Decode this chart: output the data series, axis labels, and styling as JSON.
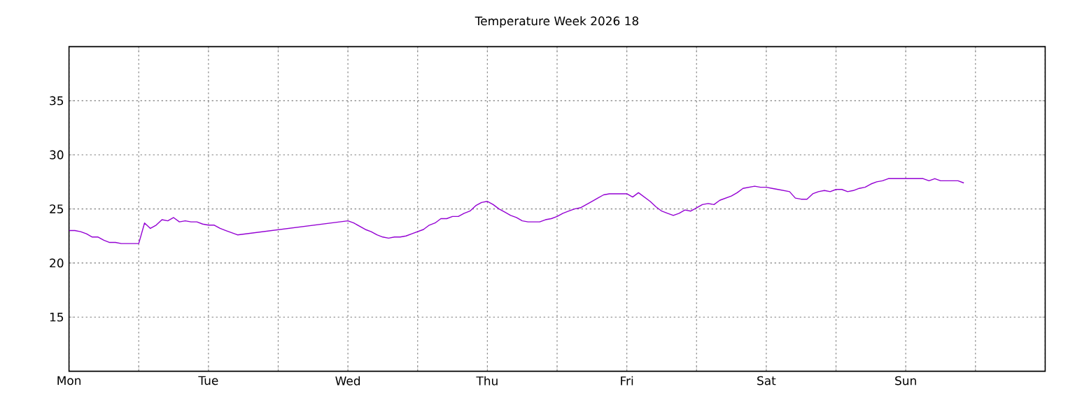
{
  "chart_data": {
    "type": "line",
    "title": "Temperature Week 2026 18",
    "categories": [
      "Mon",
      null,
      null,
      null,
      null,
      null,
      null,
      null,
      null,
      null,
      null,
      null,
      null,
      null,
      null,
      null,
      null,
      null,
      null,
      null,
      null,
      null,
      null,
      null,
      "Tue",
      null,
      null,
      null,
      null,
      null,
      null,
      null,
      null,
      null,
      null,
      null,
      null,
      null,
      null,
      null,
      null,
      null,
      null,
      null,
      null,
      null,
      null,
      null,
      "Wed",
      null,
      null,
      null,
      null,
      null,
      null,
      null,
      null,
      null,
      null,
      null,
      null,
      null,
      null,
      null,
      null,
      null,
      null,
      null,
      null,
      null,
      null,
      null,
      "Thu",
      null,
      null,
      null,
      null,
      null,
      null,
      null,
      null,
      null,
      null,
      null,
      null,
      null,
      null,
      null,
      null,
      null,
      null,
      null,
      null,
      null,
      null,
      null,
      "Fri",
      null,
      null,
      null,
      null,
      null,
      null,
      null,
      null,
      null,
      null,
      null,
      null,
      null,
      null,
      null,
      null,
      null,
      null,
      null,
      null,
      null,
      null,
      null,
      "Sat",
      null,
      null,
      null,
      null,
      null,
      null,
      null,
      null,
      null,
      null,
      null,
      null,
      null,
      null,
      null,
      null,
      null,
      null,
      null,
      null,
      null,
      null,
      null,
      "Sun",
      null,
      null,
      null,
      null,
      null,
      null,
      null,
      null,
      null,
      null,
      null,
      null,
      null,
      null,
      null,
      null,
      null,
      null,
      null,
      null,
      null,
      null,
      null,
      null
    ],
    "series": [
      {
        "color": "#9400d3",
        "values": [
          23.0,
          23.0,
          22.9,
          22.7,
          22.4,
          22.4,
          22.1,
          21.9,
          21.9,
          21.8,
          21.8,
          21.8,
          21.8,
          23.7,
          23.2,
          23.5,
          24.0,
          23.9,
          24.2,
          23.8,
          23.9,
          23.8,
          23.8,
          23.6,
          23.5,
          23.5,
          23.2,
          23.0,
          22.8,
          22.6,
          null,
          null,
          null,
          null,
          null,
          null,
          null,
          null,
          null,
          null,
          null,
          null,
          null,
          null,
          null,
          null,
          null,
          null,
          23.9,
          23.7,
          23.4,
          23.1,
          22.9,
          22.6,
          22.4,
          22.3,
          22.4,
          22.4,
          22.5,
          22.7,
          22.9,
          23.1,
          23.5,
          23.7,
          24.1,
          24.1,
          24.3,
          24.3,
          24.6,
          24.8,
          25.3,
          25.6,
          25.7,
          25.4,
          25.0,
          24.7,
          24.4,
          24.2,
          23.9,
          23.8,
          23.8,
          23.8,
          24.0,
          24.1,
          24.3,
          24.6,
          24.8,
          25.0,
          25.1,
          25.4,
          25.7,
          26.0,
          26.3,
          26.4,
          26.4,
          26.4,
          26.4,
          26.1,
          26.5,
          26.1,
          25.7,
          25.2,
          24.8,
          24.6,
          24.4,
          24.6,
          24.9,
          24.8,
          25.1,
          25.4,
          25.5,
          25.4,
          25.8,
          26.0,
          26.2,
          26.5,
          26.9,
          27.0,
          27.1,
          27.0,
          27.0,
          26.9,
          26.8,
          26.7,
          26.6,
          26.0,
          25.9,
          25.9,
          26.4,
          26.6,
          26.7,
          26.6,
          26.8,
          26.8,
          26.6,
          26.7,
          26.9,
          27.0,
          27.3,
          27.5,
          27.6,
          27.8,
          27.8,
          27.8,
          27.8,
          27.8,
          27.8,
          27.8,
          27.6,
          27.8,
          27.6,
          27.6,
          27.6,
          27.6,
          27.4,
          null,
          null,
          null,
          null,
          null,
          null,
          null,
          null,
          null,
          null,
          null,
          null,
          null,
          null
        ]
      }
    ],
    "ylim": [
      10,
      40
    ],
    "yticks": [
      15,
      20,
      25,
      30,
      35
    ],
    "grid": true,
    "marker": "none",
    "line_style": "solid"
  }
}
